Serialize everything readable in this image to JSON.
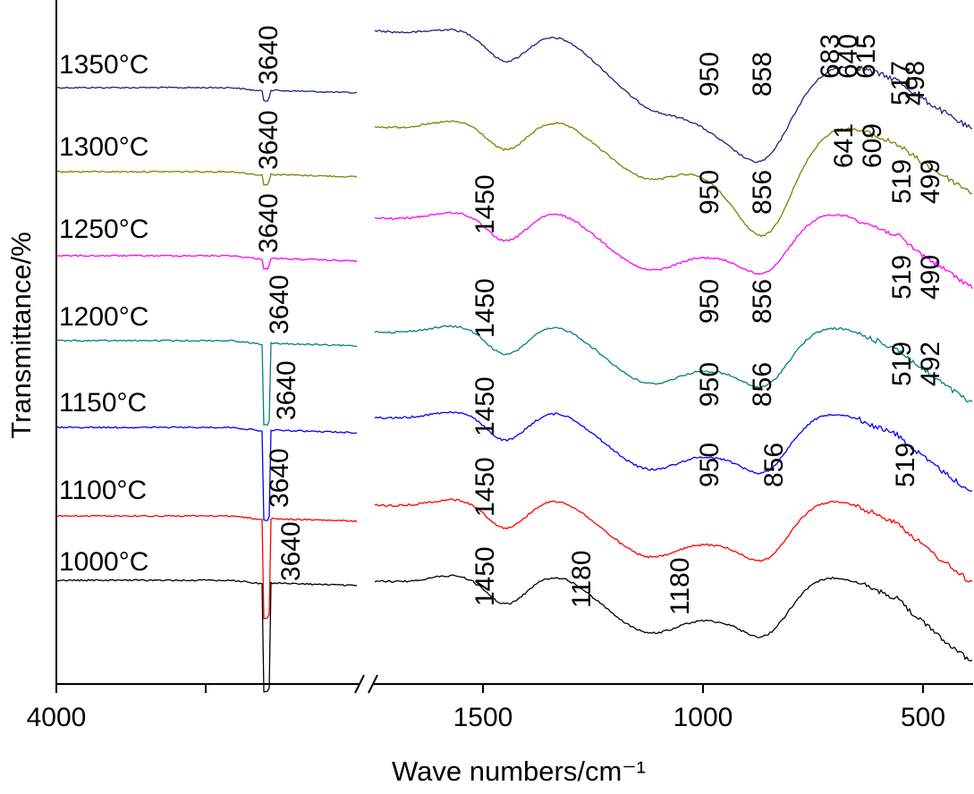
{
  "chart_data": {
    "type": "line",
    "xlabel": "Wave numbers/cm⁻¹",
    "ylabel": "Transmittance/%",
    "x_ticks": [
      "4000",
      "1500",
      "1000",
      "500"
    ],
    "axis_break": true,
    "series": [
      {
        "name": "1350°C",
        "color": "#1a237e",
        "peaks": [
          "3640",
          "950",
          "858",
          "683",
          "640",
          "615",
          "517",
          "498"
        ]
      },
      {
        "name": "1300°C",
        "color": "#808000",
        "peaks": [
          "3640",
          "950",
          "856",
          "641",
          "609",
          "519",
          "499"
        ]
      },
      {
        "name": "1250°C",
        "color": "#ff00ff",
        "peaks": [
          "3640",
          "1450",
          "950",
          "856",
          "519",
          "490"
        ]
      },
      {
        "name": "1200°C",
        "color": "#008080",
        "peaks": [
          "3640",
          "1450",
          "950",
          "856",
          "519",
          "492"
        ]
      },
      {
        "name": "1150°C",
        "color": "#0000ff",
        "peaks": [
          "3640",
          "1450",
          "950",
          "856",
          "519"
        ]
      },
      {
        "name": "1100°C",
        "color": "#ff0000",
        "peaks": [
          "3640",
          "1450"
        ]
      },
      {
        "name": "1000°C",
        "color": "#000000",
        "peaks": [
          "3640",
          "1450",
          "1180",
          "1180"
        ]
      }
    ]
  }
}
